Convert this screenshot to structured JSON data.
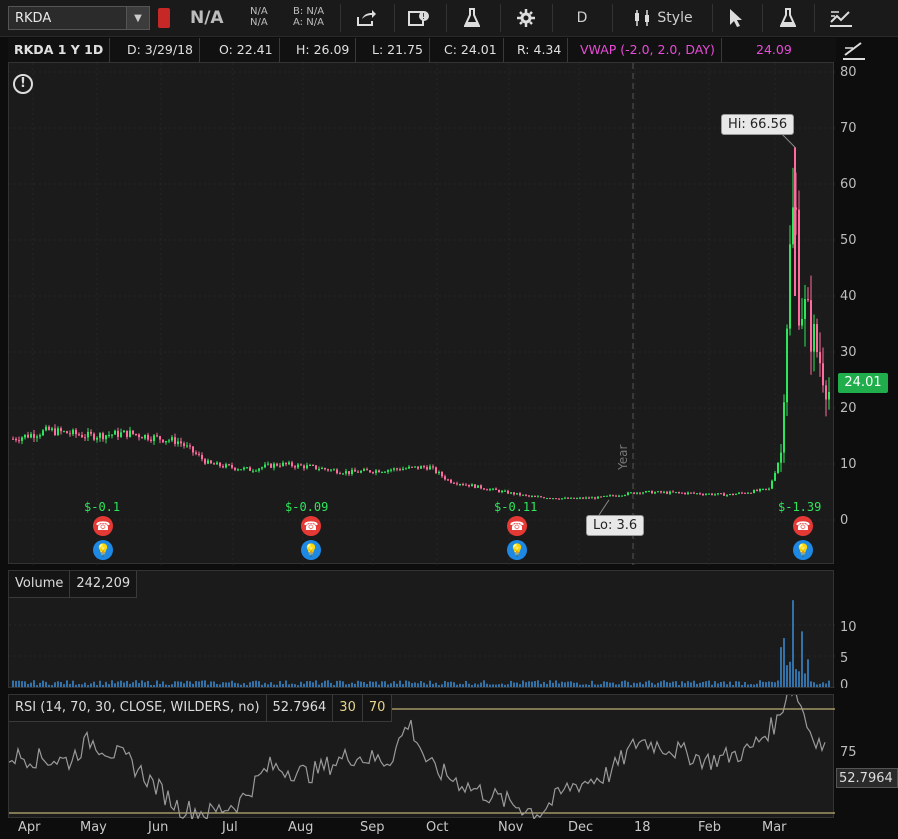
{
  "toolbar": {
    "symbol": "RKDA",
    "dropdown_glyph": "▼",
    "last": "N/A",
    "change_top": "N/A",
    "change_bottom": "N/A",
    "bid": "B: N/A",
    "ask": "A: N/A",
    "period": "D",
    "style_label": "Style",
    "icons": [
      "share-icon",
      "calendar-icon",
      "flask-icon",
      "gear-icon",
      "candles-icon",
      "cursor-icon",
      "flask-icon",
      "drawing-icon"
    ]
  },
  "header": {
    "title": "RKDA 1 Y 1D",
    "date": "D: 3/29/18",
    "open": "O: 22.41",
    "high": "H: 26.09",
    "low": "L: 21.75",
    "close": "C: 24.01",
    "range": "R: 4.34",
    "study": "VWAP (-2.0, 2.0, DAY)",
    "study_value": "24.09"
  },
  "price_axis": {
    "ticks": [
      "80",
      "70",
      "60",
      "50",
      "40",
      "30",
      "20",
      "10",
      "0"
    ],
    "current": "24.01"
  },
  "annotations": {
    "hi": "Hi: 66.56",
    "lo": "Lo: 3.6",
    "year_marker": "Year",
    "alert_glyph": "!"
  },
  "earnings": [
    {
      "eps": "$-0.1"
    },
    {
      "eps": "$-0.09"
    },
    {
      "eps": "$-0.11"
    },
    {
      "eps": "$-1.39"
    }
  ],
  "volume": {
    "label": "Volume",
    "value": "242,209",
    "ticks": [
      "10",
      "5",
      "0"
    ]
  },
  "rsi": {
    "label": "RSI (14, 70, 30, CLOSE, WILDERS, no)",
    "value": "52.7964",
    "low_level": "30",
    "high_level": "70",
    "ticks": [
      "75"
    ],
    "current": "52.7964"
  },
  "x_axis": {
    "months": [
      "Apr",
      "May",
      "Jun",
      "Jul",
      "Aug",
      "Sep",
      "Oct",
      "Nov",
      "Dec",
      "18",
      "Feb",
      "Mar"
    ]
  },
  "colors": {
    "up": "#2ee65b",
    "down": "#ff6b9e",
    "rsi_line": "#9a9a9a",
    "rsi_over": "#ff5252",
    "rsi_under": "#26c6da",
    "level_line": "#e6d48a"
  }
}
